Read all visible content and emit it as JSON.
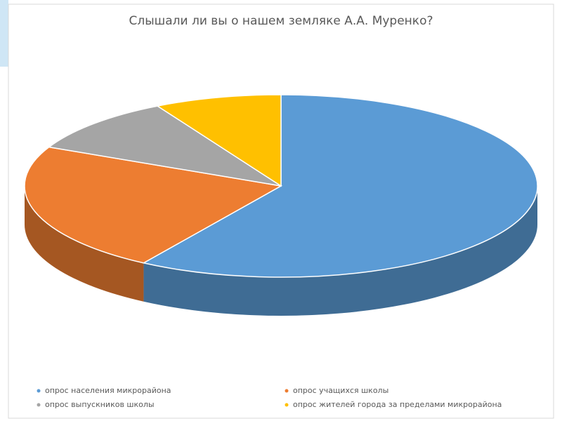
{
  "chart_data": {
    "type": "pie",
    "title": "Слышали ли вы о нашем земляке А.А. Муренко?",
    "categories": [
      "опрос населения микрорайона",
      "опрос учащихся школы",
      "опрос выпускников школы",
      "опрос жителей города за пределами микрорайона"
    ],
    "values": [
      59,
      23,
      10,
      8
    ],
    "colors": [
      "#5b9bd5",
      "#ed7d31",
      "#a5a5a5",
      "#ffc000"
    ]
  }
}
